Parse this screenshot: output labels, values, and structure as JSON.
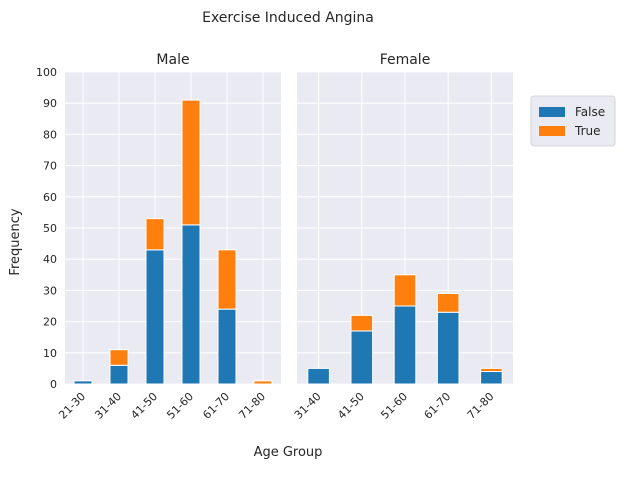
{
  "chart_data": {
    "type": "bar",
    "stacked": true,
    "title": "Exercise Induced Angina",
    "xlabel": "Age Group",
    "ylabel": "Frequency",
    "ylim": [
      0,
      100
    ],
    "yticks": [
      0,
      10,
      20,
      30,
      40,
      50,
      60,
      70,
      80,
      90,
      100
    ],
    "grid": true,
    "legend_position": "right",
    "colors": {
      "False": "#1f77b4",
      "True": "#ff7f0e",
      "plot_background": "#eaeaf2",
      "grid": "#ffffff"
    },
    "legend": [
      "False",
      "True"
    ],
    "panels": [
      {
        "title": "Male",
        "categories": [
          "21-30",
          "31-40",
          "41-50",
          "51-60",
          "61-70",
          "71-80"
        ],
        "series": [
          {
            "name": "False",
            "values": [
              1,
              6,
              43,
              51,
              24,
              0
            ]
          },
          {
            "name": "True",
            "values": [
              0,
              5,
              10,
              40,
              19,
              1
            ]
          }
        ]
      },
      {
        "title": "Female",
        "categories": [
          "31-40",
          "41-50",
          "51-60",
          "61-70",
          "71-80"
        ],
        "series": [
          {
            "name": "False",
            "values": [
              5,
              17,
              25,
              23,
              4
            ]
          },
          {
            "name": "True",
            "values": [
              0,
              5,
              10,
              6,
              1
            ]
          }
        ]
      }
    ]
  }
}
